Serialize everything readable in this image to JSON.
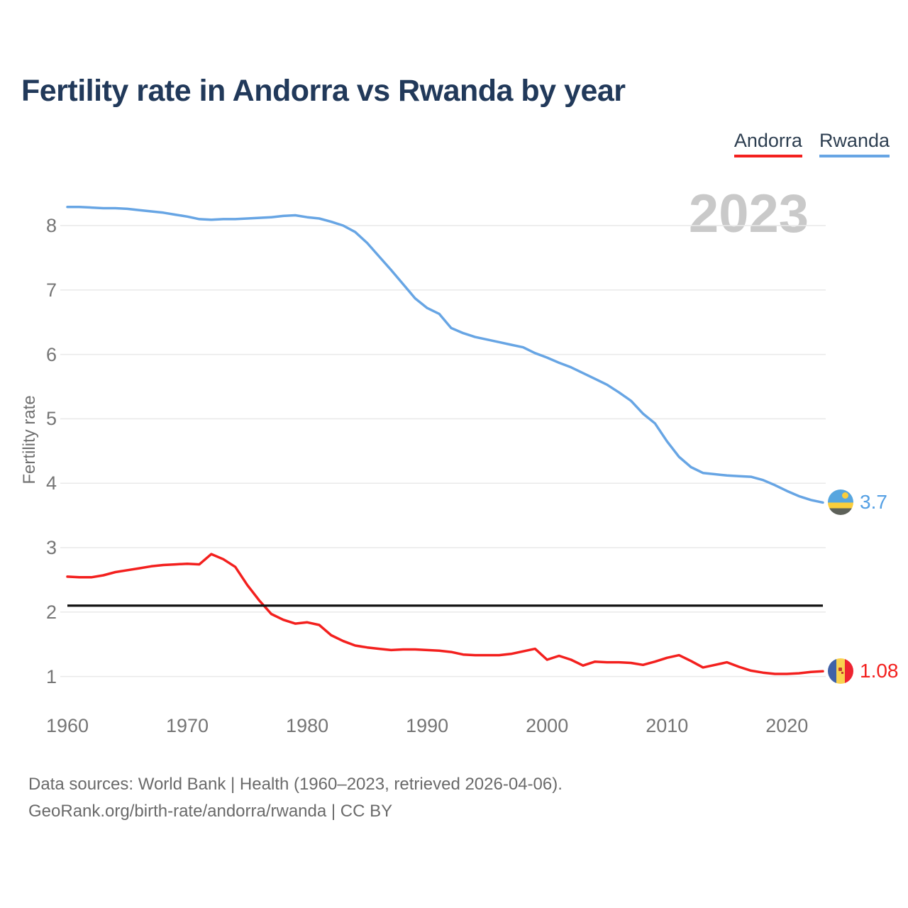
{
  "page": {
    "title": "Fertility rate in Andorra vs Rwanda by year",
    "watermark": "2023"
  },
  "legend": {
    "items": [
      {
        "label": "Andorra",
        "color": "#f3201e"
      },
      {
        "label": "Rwanda",
        "color": "#67a5e4"
      }
    ]
  },
  "y_axis": {
    "label": "Fertility rate",
    "ticks": [
      8,
      7,
      6,
      5,
      4,
      3,
      2,
      1
    ]
  },
  "x_axis": {
    "ticks": [
      1960,
      1970,
      1980,
      1990,
      2000,
      2010,
      2020
    ]
  },
  "end_labels": {
    "rwanda": "3.7",
    "andorra": "1.08"
  },
  "footer": {
    "line1": "Data sources: World Bank | Health (1960–2023, retrieved 2026-04-06).",
    "line2": "GeoRank.org/birth-rate/andorra/rwanda | CC BY"
  },
  "colors": {
    "background": "#ffffff",
    "title": "#21395a",
    "tick_text": "#757575",
    "grid": "#e9e9e9",
    "footer_text": "#6a6a6a",
    "watermark": "#c9c9c9",
    "andorra_line": "#f3201e",
    "rwanda_line": "#67a5e4",
    "reference_line": "#111111"
  },
  "chart_data": {
    "type": "line",
    "title": "Fertility rate in Andorra vs Rwanda by year",
    "xlabel": "",
    "ylabel": "Fertility rate",
    "grid": "horizontal",
    "legend_position": "top-right",
    "ylim": [
      0.65,
      8.6
    ],
    "y_ticks": [
      1,
      2,
      3,
      4,
      5,
      6,
      7,
      8
    ],
    "x_ticks": [
      1960,
      1970,
      1980,
      1990,
      2000,
      2010,
      2020
    ],
    "reference_line": {
      "value": 2.1,
      "color": "#111111"
    },
    "x": [
      1960,
      1961,
      1962,
      1963,
      1964,
      1965,
      1966,
      1967,
      1968,
      1969,
      1970,
      1971,
      1972,
      1973,
      1974,
      1975,
      1976,
      1977,
      1978,
      1979,
      1980,
      1981,
      1982,
      1983,
      1984,
      1985,
      1986,
      1987,
      1988,
      1989,
      1990,
      1991,
      1992,
      1993,
      1994,
      1995,
      1996,
      1997,
      1998,
      1999,
      2000,
      2001,
      2002,
      2003,
      2004,
      2005,
      2006,
      2007,
      2008,
      2009,
      2010,
      2011,
      2012,
      2013,
      2014,
      2015,
      2016,
      2017,
      2018,
      2019,
      2020,
      2021,
      2022,
      2023
    ],
    "series": [
      {
        "name": "Andorra",
        "color": "#f3201e",
        "end_value": 1.08,
        "values": [
          2.55,
          2.54,
          2.54,
          2.57,
          2.62,
          2.65,
          2.68,
          2.71,
          2.73,
          2.74,
          2.75,
          2.74,
          2.9,
          2.82,
          2.7,
          2.42,
          2.18,
          1.97,
          1.88,
          1.82,
          1.84,
          1.8,
          1.64,
          1.55,
          1.48,
          1.45,
          1.43,
          1.41,
          1.42,
          1.42,
          1.41,
          1.4,
          1.38,
          1.34,
          1.33,
          1.33,
          1.33,
          1.35,
          1.39,
          1.43,
          1.26,
          1.32,
          1.26,
          1.17,
          1.23,
          1.22,
          1.22,
          1.21,
          1.18,
          1.23,
          1.29,
          1.33,
          1.24,
          1.14,
          1.18,
          1.22,
          1.15,
          1.09,
          1.06,
          1.04,
          1.04,
          1.05,
          1.07,
          1.08
        ]
      },
      {
        "name": "Rwanda",
        "color": "#67a5e4",
        "end_value": 3.7,
        "values": [
          8.29,
          8.29,
          8.28,
          8.27,
          8.27,
          8.26,
          8.24,
          8.22,
          8.2,
          8.17,
          8.14,
          8.1,
          8.09,
          8.1,
          8.1,
          8.11,
          8.12,
          8.13,
          8.15,
          8.16,
          8.13,
          8.11,
          8.06,
          8.0,
          7.9,
          7.73,
          7.52,
          7.31,
          7.09,
          6.87,
          6.72,
          6.63,
          6.41,
          6.33,
          6.27,
          6.23,
          6.19,
          6.15,
          6.11,
          6.02,
          5.95,
          5.87,
          5.8,
          5.71,
          5.62,
          5.53,
          5.41,
          5.28,
          5.08,
          4.93,
          4.65,
          4.41,
          4.25,
          4.16,
          4.14,
          4.12,
          4.11,
          4.1,
          4.05,
          3.97,
          3.88,
          3.8,
          3.74,
          3.7
        ]
      }
    ]
  }
}
